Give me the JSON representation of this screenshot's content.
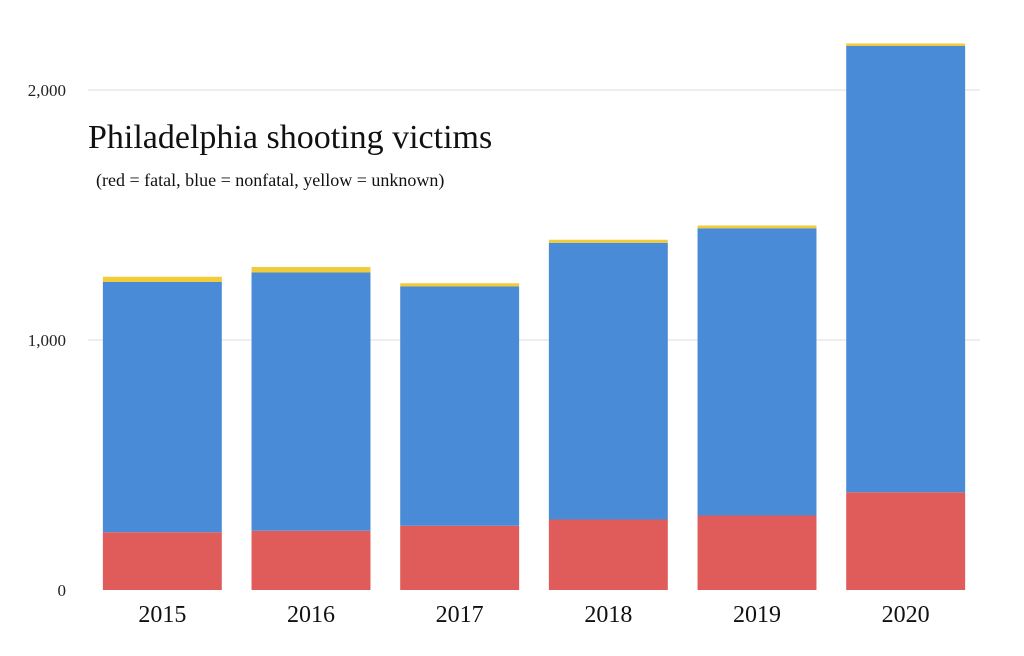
{
  "chart_data": {
    "type": "bar",
    "stacked": true,
    "title": "Philadelphia shooting victims",
    "subtitle": "(red = fatal, blue = nonfatal,  yellow = unknown)",
    "xlabel": "",
    "ylabel": "",
    "categories": [
      "2015",
      "2016",
      "2017",
      "2018",
      "2019",
      "2020"
    ],
    "series": [
      {
        "key": "fatal",
        "color": "#e05c5a",
        "values": [
          231,
          237,
          257,
          282,
          298,
          391
        ]
      },
      {
        "key": "nonfatal",
        "color": "#4a8bd8",
        "values": [
          1001,
          1033,
          957,
          1107,
          1149,
          1785
        ]
      },
      {
        "key": "unknown",
        "color": "#f2cb3a",
        "values": [
          21,
          22,
          13,
          12,
          11,
          10
        ]
      }
    ],
    "ylim": [
      0,
      2200
    ],
    "yticks": [
      0,
      1000,
      2000
    ],
    "ytick_labels": [
      "0",
      "1,000",
      "2,000"
    ],
    "grid": true,
    "grid_color": "#e3e3e3"
  }
}
